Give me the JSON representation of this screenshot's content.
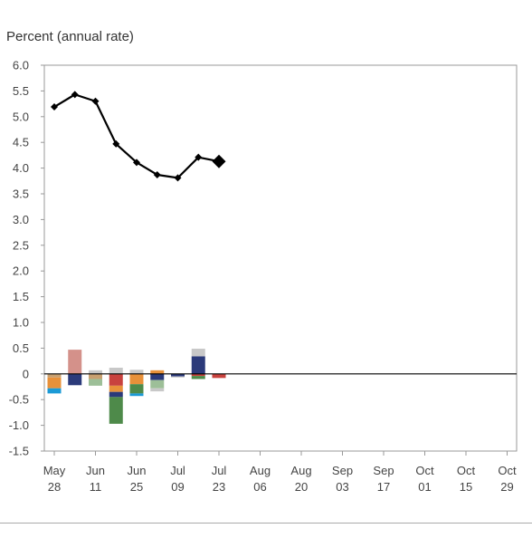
{
  "chart_data": {
    "type": "line",
    "ylabel": "Percent (annual rate)",
    "ylim": [
      -1.5,
      6.0
    ],
    "yticks": [
      "6.0",
      "5.5",
      "5.0",
      "4.5",
      "4.0",
      "3.5",
      "3.0",
      "2.5",
      "2.0",
      "1.5",
      "1.0",
      "0.5",
      "0",
      "-0.5",
      "-1.0",
      "-1.5"
    ],
    "xticks": [
      {
        "month": "May",
        "day": "28"
      },
      {
        "month": "Jun",
        "day": "11"
      },
      {
        "month": "Jun",
        "day": "25"
      },
      {
        "month": "Jul",
        "day": "09"
      },
      {
        "month": "Jul",
        "day": "23"
      },
      {
        "month": "Aug",
        "day": "06"
      },
      {
        "month": "Aug",
        "day": "20"
      },
      {
        "month": "Sep",
        "day": "03"
      },
      {
        "month": "Sep",
        "day": "17"
      },
      {
        "month": "Oct",
        "day": "01"
      },
      {
        "month": "Oct",
        "day": "15"
      },
      {
        "month": "Oct",
        "day": "29"
      }
    ],
    "line": {
      "color": "#000000",
      "x": [
        0,
        0.5,
        1,
        1.5,
        2,
        2.5,
        3,
        3.5,
        4
      ],
      "y": [
        5.19,
        5.43,
        5.3,
        4.47,
        4.11,
        3.87,
        3.81,
        4.21,
        4.13
      ]
    },
    "bars_colors": {
      "pink": "#d4918a",
      "gray": "#c8c8c8",
      "navy": "#2b3a7a",
      "orange": "#e8913a",
      "blue": "#1b9ad6",
      "green": "#4e8a4a",
      "lightgreen": "#9dbf98",
      "red": "#c8423e",
      "tan": "#c8a070"
    },
    "bars": [
      {
        "x": 0,
        "segments": [
          {
            "from": 0,
            "to": -0.07,
            "color": "tan"
          },
          {
            "from": -0.07,
            "to": -0.28,
            "color": "orange"
          },
          {
            "from": -0.28,
            "to": -0.38,
            "color": "blue"
          }
        ]
      },
      {
        "x": 0.5,
        "segments": [
          {
            "from": 0,
            "to": 0.47,
            "color": "pink"
          },
          {
            "from": 0,
            "to": -0.22,
            "color": "navy"
          }
        ]
      },
      {
        "x": 1,
        "segments": [
          {
            "from": 0,
            "to": 0.07,
            "color": "gray"
          },
          {
            "from": 0,
            "to": -0.1,
            "color": "tan"
          },
          {
            "from": -0.1,
            "to": -0.23,
            "color": "lightgreen"
          }
        ]
      },
      {
        "x": 1.5,
        "segments": [
          {
            "from": 0,
            "to": 0.12,
            "color": "gray"
          },
          {
            "from": 0,
            "to": -0.23,
            "color": "red"
          },
          {
            "from": -0.23,
            "to": -0.35,
            "color": "orange"
          },
          {
            "from": -0.35,
            "to": -0.45,
            "color": "navy"
          },
          {
            "from": -0.45,
            "to": -0.97,
            "color": "green"
          }
        ]
      },
      {
        "x": 2,
        "segments": [
          {
            "from": 0,
            "to": 0.08,
            "color": "gray"
          },
          {
            "from": 0,
            "to": -0.2,
            "color": "orange"
          },
          {
            "from": -0.2,
            "to": -0.38,
            "color": "green"
          },
          {
            "from": -0.38,
            "to": -0.43,
            "color": "blue"
          }
        ]
      },
      {
        "x": 2.5,
        "segments": [
          {
            "from": 0,
            "to": 0.07,
            "color": "orange"
          },
          {
            "from": 0,
            "to": -0.12,
            "color": "navy"
          },
          {
            "from": -0.12,
            "to": -0.28,
            "color": "lightgreen"
          },
          {
            "from": -0.28,
            "to": -0.34,
            "color": "gray"
          }
        ]
      },
      {
        "x": 3,
        "segments": [
          {
            "from": 0,
            "to": -0.05,
            "color": "navy"
          },
          {
            "from": -0.05,
            "to": -0.07,
            "color": "gray"
          }
        ]
      },
      {
        "x": 3.5,
        "segments": [
          {
            "from": 0,
            "to": 0.34,
            "color": "navy"
          },
          {
            "from": 0.34,
            "to": 0.49,
            "color": "gray"
          },
          {
            "from": 0,
            "to": -0.04,
            "color": "red"
          },
          {
            "from": -0.04,
            "to": -0.1,
            "color": "green"
          }
        ]
      },
      {
        "x": 4,
        "segments": [
          {
            "from": 0,
            "to": -0.08,
            "color": "red"
          }
        ]
      }
    ]
  }
}
